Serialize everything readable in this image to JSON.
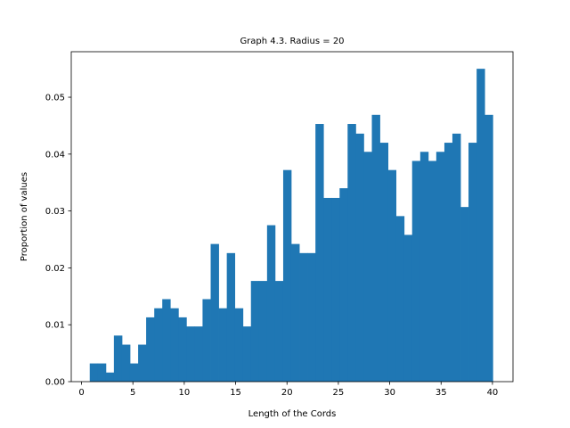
{
  "chart_data": {
    "type": "bar",
    "title": "Graph 4.3. Radius = 20",
    "xlabel": "Length of the Cords",
    "ylabel": "Proportion of values",
    "xlim": [
      -1.0,
      42.0
    ],
    "ylim": [
      0.0,
      0.058
    ],
    "xticks": [
      0,
      5,
      10,
      15,
      20,
      25,
      30,
      35,
      40
    ],
    "yticks": [
      0.0,
      0.01,
      0.02,
      0.03,
      0.04,
      0.05
    ],
    "ytick_labels": [
      "0.00",
      "0.01",
      "0.02",
      "0.03",
      "0.04",
      "0.05"
    ],
    "grid": false,
    "legend": "none",
    "bar_color": "#1f77b4",
    "bin_edges": [
      0.8,
      1.58,
      2.37,
      3.15,
      3.94,
      4.72,
      5.51,
      6.29,
      7.08,
      7.86,
      8.64,
      9.43,
      10.21,
      11.0,
      11.78,
      12.57,
      13.35,
      14.14,
      14.92,
      15.71,
      16.49,
      17.27,
      18.06,
      18.84,
      19.63,
      20.41,
      21.2,
      21.98,
      22.77,
      23.55,
      24.34,
      25.12,
      25.9,
      26.69,
      27.47,
      28.26,
      29.04,
      29.83,
      30.61,
      31.4,
      32.18,
      32.97,
      33.75,
      34.53,
      35.32,
      36.1,
      36.89,
      37.67,
      38.46,
      39.24,
      40.03
    ],
    "values": [
      0.0032,
      0.0032,
      0.0016,
      0.0081,
      0.0065,
      0.0032,
      0.0065,
      0.0113,
      0.0129,
      0.0145,
      0.0129,
      0.0113,
      0.0097,
      0.0097,
      0.0145,
      0.0242,
      0.0129,
      0.0226,
      0.0129,
      0.0097,
      0.0177,
      0.0177,
      0.0275,
      0.0177,
      0.0372,
      0.0242,
      0.0226,
      0.0226,
      0.0453,
      0.0323,
      0.0323,
      0.034,
      0.0453,
      0.0436,
      0.0404,
      0.0469,
      0.042,
      0.0372,
      0.0291,
      0.0258,
      0.0388,
      0.0404,
      0.0388,
      0.0404,
      0.042,
      0.0436,
      0.0307,
      0.042,
      0.055,
      0.0469
    ]
  }
}
